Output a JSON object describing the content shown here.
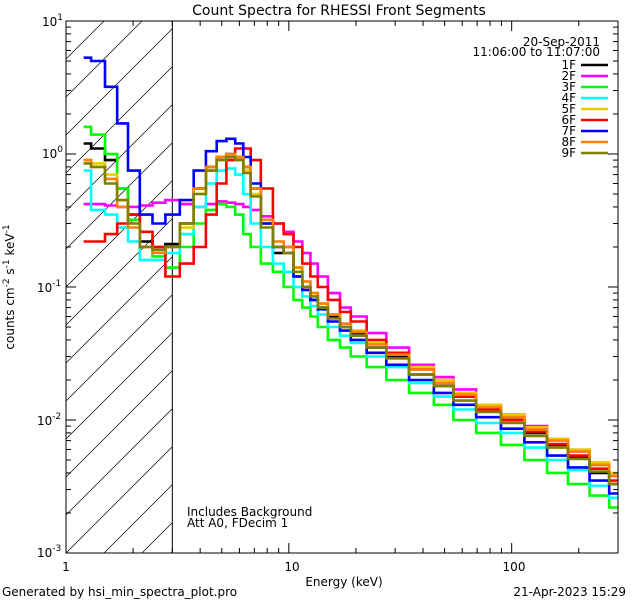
{
  "chart_data": {
    "type": "line",
    "title": "Count Spectra for RHESSI Front Segments",
    "xlabel": "Energy (keV)",
    "ylabel_parts": {
      "counts": "counts cm",
      "sup1": "-2",
      "mid": " s",
      "sup2": "-1",
      "kev": " keV",
      "sup3": "-1"
    },
    "xscale": "log",
    "yscale": "log",
    "xlim": [
      1,
      300
    ],
    "ylim": [
      0.001,
      10
    ],
    "x_ticks": [
      {
        "value": 1,
        "label": "1"
      },
      {
        "value": 10,
        "label": "10"
      },
      {
        "value": 100,
        "label": "100"
      }
    ],
    "y_ticks": [
      {
        "value": 0.001,
        "base": "10",
        "exp": "-3"
      },
      {
        "value": 0.01,
        "base": "10",
        "exp": "-2"
      },
      {
        "value": 0.1,
        "base": "10",
        "exp": "-1"
      },
      {
        "value": 1,
        "base": "10",
        "exp": "0"
      },
      {
        "value": 10,
        "base": "10",
        "exp": "1"
      }
    ],
    "attenuator_boundary_keV": 3,
    "legend_header": [
      "20-Sep-2011",
      "11:06:00 to 11:07:00"
    ],
    "annotations": [
      "Includes Background",
      "Att A0, FDecim 1"
    ],
    "shared_energy_keV": [
      1.2,
      1.4,
      1.6,
      1.8,
      2.0,
      2.3,
      2.6,
      3.0,
      3.5,
      4.0,
      4.5,
      5.0,
      5.5,
      6.0,
      6.5,
      7.0,
      8.0,
      9.0,
      10,
      11,
      12,
      13,
      14,
      16,
      18,
      20,
      25,
      30,
      40,
      50,
      60,
      80,
      100,
      130,
      160,
      200,
      250,
      300
    ],
    "series": [
      {
        "name": "1F",
        "color": "#000000",
        "values": [
          1.2,
          1.1,
          0.9,
          0.55,
          0.35,
          0.22,
          0.2,
          0.21,
          0.3,
          0.55,
          0.8,
          0.95,
          1.0,
          0.95,
          0.8,
          0.55,
          0.3,
          0.18,
          0.2,
          0.12,
          0.1,
          0.08,
          0.07,
          0.06,
          0.05,
          0.045,
          0.035,
          0.03,
          0.022,
          0.018,
          0.015,
          0.012,
          0.01,
          0.008,
          0.0065,
          0.0052,
          0.004,
          0.0033
        ]
      },
      {
        "name": "2F",
        "color": "#ff00ff",
        "values": [
          0.42,
          0.42,
          0.41,
          0.4,
          0.4,
          0.41,
          0.43,
          0.45,
          0.42,
          0.4,
          0.42,
          0.44,
          0.43,
          0.42,
          0.4,
          0.38,
          0.34,
          0.3,
          0.26,
          0.22,
          0.18,
          0.15,
          0.12,
          0.09,
          0.07,
          0.06,
          0.045,
          0.035,
          0.026,
          0.021,
          0.017,
          0.013,
          0.011,
          0.009,
          0.0072,
          0.0058,
          0.0046,
          0.0038
        ]
      },
      {
        "name": "3F",
        "color": "#00ff00",
        "values": [
          1.6,
          1.4,
          1.0,
          0.55,
          0.32,
          0.2,
          0.17,
          0.14,
          0.2,
          0.3,
          0.38,
          0.42,
          0.4,
          0.35,
          0.25,
          0.2,
          0.15,
          0.13,
          0.1,
          0.08,
          0.07,
          0.06,
          0.05,
          0.04,
          0.035,
          0.03,
          0.025,
          0.02,
          0.016,
          0.013,
          0.01,
          0.008,
          0.0065,
          0.005,
          0.004,
          0.0033,
          0.0027,
          0.0022
        ]
      },
      {
        "name": "4F",
        "color": "#00ffff",
        "values": [
          0.75,
          0.38,
          0.35,
          0.28,
          0.22,
          0.16,
          0.16,
          0.18,
          0.25,
          0.4,
          0.6,
          0.75,
          0.78,
          0.7,
          0.5,
          0.3,
          0.2,
          0.15,
          0.13,
          0.1,
          0.085,
          0.072,
          0.062,
          0.05,
          0.043,
          0.038,
          0.03,
          0.025,
          0.019,
          0.015,
          0.012,
          0.0095,
          0.008,
          0.0062,
          0.005,
          0.0042,
          0.0032,
          0.0026
        ]
      },
      {
        "name": "5F",
        "color": "#e6cc00",
        "values": [
          0.9,
          0.85,
          0.7,
          0.45,
          0.3,
          0.2,
          0.2,
          0.2,
          0.28,
          0.5,
          0.75,
          0.9,
          0.95,
          0.9,
          0.75,
          0.5,
          0.3,
          0.2,
          0.2,
          0.14,
          0.11,
          0.09,
          0.075,
          0.062,
          0.053,
          0.047,
          0.038,
          0.032,
          0.025,
          0.02,
          0.016,
          0.013,
          0.011,
          0.0088,
          0.0072,
          0.006,
          0.0048,
          0.004
        ]
      },
      {
        "name": "6F",
        "color": "#ff0000",
        "values": [
          0.22,
          0.22,
          0.25,
          0.3,
          0.35,
          0.26,
          0.2,
          0.12,
          0.15,
          0.2,
          0.35,
          0.6,
          0.9,
          1.1,
          1.1,
          0.9,
          0.55,
          0.3,
          0.25,
          0.2,
          0.15,
          0.12,
          0.1,
          0.08,
          0.065,
          0.055,
          0.04,
          0.032,
          0.024,
          0.019,
          0.015,
          0.012,
          0.01,
          0.0082,
          0.0066,
          0.0054,
          0.0043,
          0.0035
        ]
      },
      {
        "name": "7F",
        "color": "#0000ff",
        "values": [
          5.3,
          5.0,
          3.2,
          1.7,
          0.75,
          0.35,
          0.3,
          0.35,
          0.45,
          0.75,
          1.05,
          1.25,
          1.3,
          1.2,
          0.95,
          0.6,
          0.3,
          0.2,
          0.18,
          0.12,
          0.095,
          0.08,
          0.068,
          0.055,
          0.047,
          0.04,
          0.032,
          0.026,
          0.02,
          0.016,
          0.013,
          0.0105,
          0.0086,
          0.0068,
          0.0054,
          0.0044,
          0.0035,
          0.0028
        ]
      },
      {
        "name": "8F",
        "color": "#ff8000",
        "values": [
          0.9,
          0.8,
          0.65,
          0.4,
          0.28,
          0.2,
          0.18,
          0.2,
          0.3,
          0.55,
          0.8,
          0.95,
          1.0,
          0.95,
          0.8,
          0.55,
          0.32,
          0.22,
          0.2,
          0.14,
          0.11,
          0.09,
          0.075,
          0.062,
          0.053,
          0.046,
          0.037,
          0.031,
          0.024,
          0.019,
          0.0155,
          0.0125,
          0.0105,
          0.0085,
          0.007,
          0.0058,
          0.0046,
          0.0038
        ]
      },
      {
        "name": "9F",
        "color": "#808000",
        "values": [
          0.85,
          0.8,
          0.6,
          0.45,
          0.3,
          0.2,
          0.19,
          0.2,
          0.3,
          0.5,
          0.75,
          0.9,
          0.95,
          0.9,
          0.72,
          0.48,
          0.28,
          0.2,
          0.18,
          0.13,
          0.1,
          0.085,
          0.07,
          0.058,
          0.05,
          0.043,
          0.035,
          0.029,
          0.022,
          0.018,
          0.014,
          0.0115,
          0.0095,
          0.0076,
          0.0062,
          0.0051,
          0.0041,
          0.0033
        ]
      }
    ]
  },
  "footer": {
    "left": "Generated by hsi_min_spectra_plot.pro",
    "right": "21-Apr-2023 15:29"
  }
}
